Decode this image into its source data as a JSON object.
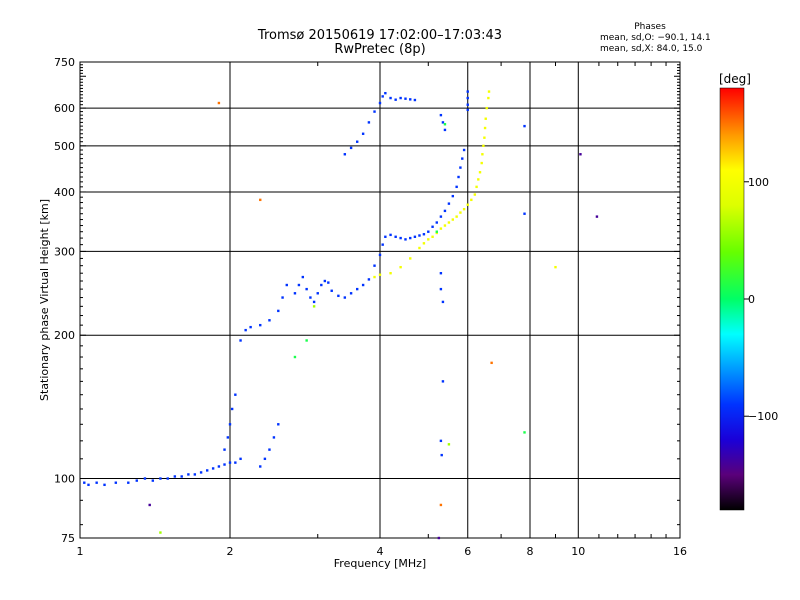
{
  "header": {
    "title_line1": "Tromsø 20150619 17:02:00–17:03:43",
    "title_line2": "RwPretec (8p)"
  },
  "phases": {
    "heading": "Phases",
    "line_o": "mean, sd,O: −90.1, 14.1",
    "line_x": "mean, sd,X:  84.0, 15.0"
  },
  "chart_data": {
    "type": "scatter",
    "title": "Tromsø 20150619 17:02:00–17:03:43",
    "subtitle": "RwPretec (8p)",
    "xlabel": "Frequency [MHz]",
    "ylabel": "Stationary phase Virtual Height [km]",
    "xscale": "log",
    "yscale": "log",
    "xlim": [
      1,
      16
    ],
    "ylim": [
      75,
      750
    ],
    "xticks": [
      {
        "v": 1,
        "label": "1"
      },
      {
        "v": 2,
        "label": "2"
      },
      {
        "v": 4,
        "label": "4"
      },
      {
        "v": 6,
        "label": "6"
      },
      {
        "v": 8,
        "label": "8"
      },
      {
        "v": 10,
        "label": "10"
      },
      {
        "v": 16,
        "label": "16"
      }
    ],
    "yticks": [
      {
        "v": 75,
        "label": "75"
      },
      {
        "v": 100,
        "label": "100"
      },
      {
        "v": 200,
        "label": "200"
      },
      {
        "v": 300,
        "label": "300"
      },
      {
        "v": 400,
        "label": "400"
      },
      {
        "v": 500,
        "label": "500"
      },
      {
        "v": 600,
        "label": "600"
      },
      {
        "v": 750,
        "label": "750"
      }
    ],
    "grid": true,
    "colorbar": {
      "label": "[deg]",
      "range": [
        -180,
        180
      ],
      "ticks": [
        {
          "v": 100,
          "label": "100"
        },
        {
          "v": 0,
          "label": "0"
        },
        {
          "v": -100,
          "label": "−100"
        }
      ],
      "stops": [
        {
          "v": -180,
          "color": "#000000"
        },
        {
          "v": -150,
          "color": "#5a007a"
        },
        {
          "v": -120,
          "color": "#1a00d8"
        },
        {
          "v": -90,
          "color": "#0033ff"
        },
        {
          "v": -60,
          "color": "#0099ff"
        },
        {
          "v": -30,
          "color": "#00ffff"
        },
        {
          "v": 0,
          "color": "#00ff66"
        },
        {
          "v": 40,
          "color": "#66ff00"
        },
        {
          "v": 80,
          "color": "#ddff00"
        },
        {
          "v": 110,
          "color": "#ffff00"
        },
        {
          "v": 140,
          "color": "#ff9900"
        },
        {
          "v": 180,
          "color": "#ff0000"
        }
      ]
    },
    "series": [
      {
        "mode": "O",
        "phase_deg": -90,
        "points": [
          [
            1.02,
            98
          ],
          [
            1.04,
            97
          ],
          [
            1.08,
            98
          ],
          [
            1.12,
            97
          ],
          [
            1.18,
            98
          ],
          [
            1.25,
            98
          ],
          [
            1.3,
            99
          ],
          [
            1.35,
            100
          ],
          [
            1.4,
            99
          ],
          [
            1.45,
            100
          ],
          [
            1.5,
            100
          ],
          [
            1.55,
            101
          ],
          [
            1.6,
            101
          ],
          [
            1.65,
            102
          ],
          [
            1.7,
            102
          ],
          [
            1.75,
            103
          ],
          [
            1.8,
            104
          ],
          [
            1.85,
            105
          ],
          [
            1.9,
            106
          ],
          [
            1.95,
            107
          ],
          [
            2.0,
            108
          ],
          [
            2.05,
            108
          ],
          [
            2.1,
            110
          ],
          [
            1.95,
            115
          ],
          [
            1.98,
            122
          ],
          [
            2.0,
            130
          ],
          [
            2.02,
            140
          ],
          [
            2.05,
            150
          ],
          [
            2.3,
            106
          ],
          [
            2.35,
            110
          ],
          [
            2.4,
            115
          ],
          [
            2.45,
            122
          ],
          [
            2.5,
            130
          ],
          [
            2.1,
            195
          ],
          [
            2.15,
            205
          ],
          [
            2.2,
            208
          ],
          [
            2.3,
            210
          ],
          [
            2.4,
            215
          ],
          [
            2.5,
            225
          ],
          [
            2.55,
            240
          ],
          [
            2.6,
            255
          ],
          [
            2.7,
            245
          ],
          [
            2.75,
            255
          ],
          [
            2.8,
            265
          ],
          [
            2.85,
            250
          ],
          [
            2.9,
            240
          ],
          [
            2.95,
            235
          ],
          [
            3.0,
            245
          ],
          [
            3.05,
            255
          ],
          [
            3.1,
            260
          ],
          [
            3.15,
            258
          ],
          [
            3.2,
            248
          ],
          [
            3.3,
            242
          ],
          [
            3.4,
            240
          ],
          [
            3.5,
            245
          ],
          [
            3.6,
            250
          ],
          [
            3.7,
            255
          ],
          [
            3.8,
            262
          ],
          [
            3.9,
            280
          ],
          [
            4.0,
            295
          ],
          [
            4.05,
            310
          ],
          [
            4.1,
            322
          ],
          [
            4.2,
            325
          ],
          [
            4.3,
            322
          ],
          [
            4.4,
            320
          ],
          [
            4.5,
            318
          ],
          [
            4.6,
            320
          ],
          [
            4.7,
            322
          ],
          [
            4.8,
            324
          ],
          [
            4.9,
            326
          ],
          [
            5.0,
            330
          ],
          [
            5.1,
            338
          ],
          [
            5.2,
            345
          ],
          [
            5.3,
            355
          ],
          [
            5.4,
            365
          ],
          [
            5.5,
            378
          ],
          [
            5.6,
            392
          ],
          [
            5.7,
            410
          ],
          [
            5.75,
            430
          ],
          [
            5.8,
            450
          ],
          [
            5.85,
            470
          ],
          [
            5.9,
            490
          ],
          [
            3.4,
            480
          ],
          [
            3.5,
            495
          ],
          [
            3.6,
            510
          ],
          [
            3.7,
            530
          ],
          [
            3.8,
            560
          ],
          [
            3.9,
            590
          ],
          [
            4.0,
            615
          ],
          [
            4.05,
            635
          ],
          [
            4.1,
            645
          ],
          [
            4.2,
            630
          ],
          [
            4.3,
            625
          ],
          [
            4.4,
            630
          ],
          [
            4.5,
            628
          ],
          [
            4.6,
            626
          ],
          [
            4.7,
            624
          ],
          [
            6.0,
            650
          ],
          [
            6.0,
            630
          ],
          [
            6.0,
            610
          ],
          [
            6.0,
            595
          ],
          [
            5.3,
            580
          ],
          [
            5.35,
            560
          ],
          [
            5.4,
            540
          ],
          [
            5.3,
            270
          ],
          [
            5.3,
            250
          ],
          [
            5.35,
            235
          ],
          [
            5.3,
            120
          ],
          [
            5.32,
            112
          ],
          [
            5.35,
            160
          ],
          [
            7.8,
            550
          ],
          [
            7.8,
            360
          ]
        ]
      },
      {
        "mode": "X",
        "phase_deg": 100,
        "points": [
          [
            3.9,
            265
          ],
          [
            4.0,
            268
          ],
          [
            4.2,
            270
          ],
          [
            4.4,
            278
          ],
          [
            4.6,
            290
          ],
          [
            4.8,
            305
          ],
          [
            4.9,
            312
          ],
          [
            5.0,
            318
          ],
          [
            5.1,
            322
          ],
          [
            5.2,
            328
          ],
          [
            5.3,
            335
          ],
          [
            5.4,
            340
          ],
          [
            5.5,
            345
          ],
          [
            5.6,
            350
          ],
          [
            5.7,
            355
          ],
          [
            5.8,
            362
          ],
          [
            5.9,
            368
          ],
          [
            6.0,
            376
          ],
          [
            6.1,
            385
          ],
          [
            6.2,
            395
          ],
          [
            6.25,
            410
          ],
          [
            6.3,
            425
          ],
          [
            6.35,
            440
          ],
          [
            6.4,
            460
          ],
          [
            6.42,
            480
          ],
          [
            6.45,
            500
          ],
          [
            6.48,
            520
          ],
          [
            6.5,
            545
          ],
          [
            6.52,
            570
          ],
          [
            6.55,
            600
          ],
          [
            6.6,
            630
          ],
          [
            6.62,
            650
          ],
          [
            9.0,
            278
          ]
        ]
      },
      {
        "mode": "scattered",
        "phase_deg": 150,
        "points": [
          [
            1.9,
            615
          ],
          [
            2.3,
            385
          ],
          [
            5.3,
            88
          ],
          [
            6.7,
            175
          ]
        ]
      },
      {
        "mode": "scattered",
        "phase_deg": 10,
        "points": [
          [
            5.4,
            555
          ],
          [
            5.2,
            330
          ],
          [
            7.8,
            125
          ],
          [
            2.7,
            180
          ],
          [
            2.85,
            195
          ]
        ]
      },
      {
        "mode": "scattered",
        "phase_deg": 60,
        "points": [
          [
            1.45,
            77
          ],
          [
            2.95,
            230
          ],
          [
            5.5,
            118
          ]
        ]
      },
      {
        "mode": "scattered",
        "phase_deg": -140,
        "points": [
          [
            1.38,
            88
          ],
          [
            10.9,
            355
          ],
          [
            10.1,
            480
          ],
          [
            5.25,
            75
          ]
        ]
      }
    ]
  }
}
